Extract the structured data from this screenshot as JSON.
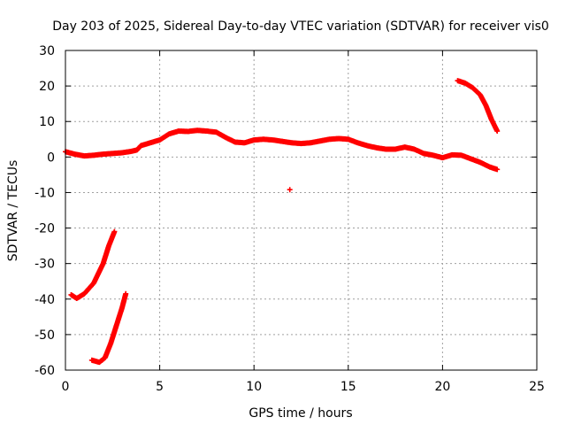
{
  "chart_data": {
    "type": "scatter",
    "title": "Day 203 of 2025, Sidereal Day-to-day VTEC variation (SDTVAR) for receiver vis0",
    "xlabel": "GPS time / hours",
    "ylabel": "SDTVAR / TECUs",
    "xlim": [
      0,
      25
    ],
    "ylim": [
      -60,
      30
    ],
    "xticks": [
      "0",
      "5",
      "10",
      "15",
      "20",
      "25"
    ],
    "yticks": [
      "-60",
      "-50",
      "-40",
      "-30",
      "-20",
      "-10",
      "0",
      "10",
      "20",
      "30"
    ],
    "grid": true,
    "marker": "plus",
    "series": [
      {
        "name": "main trace",
        "color": "#ff0000",
        "points": [
          [
            0,
            1.5
          ],
          [
            0.5,
            0.8
          ],
          [
            1.0,
            0.3
          ],
          [
            1.5,
            0.5
          ],
          [
            2.0,
            0.8
          ],
          [
            2.5,
            1.0
          ],
          [
            3.0,
            1.2
          ],
          [
            3.5,
            1.6
          ],
          [
            3.8,
            2.0
          ],
          [
            4.0,
            3.2
          ],
          [
            4.5,
            4.0
          ],
          [
            5.0,
            4.8
          ],
          [
            5.5,
            6.5
          ],
          [
            6.0,
            7.3
          ],
          [
            6.5,
            7.2
          ],
          [
            7.0,
            7.5
          ],
          [
            7.5,
            7.3
          ],
          [
            8.0,
            7.0
          ],
          [
            8.5,
            5.5
          ],
          [
            9.0,
            4.2
          ],
          [
            9.5,
            4.0
          ],
          [
            10.0,
            4.8
          ],
          [
            10.5,
            5.0
          ],
          [
            11.0,
            4.8
          ],
          [
            11.5,
            4.4
          ],
          [
            12.0,
            4.0
          ],
          [
            12.5,
            3.8
          ],
          [
            13.0,
            4.0
          ],
          [
            13.5,
            4.5
          ],
          [
            14.0,
            5.0
          ],
          [
            14.5,
            5.2
          ],
          [
            15.0,
            5.0
          ],
          [
            15.5,
            4.0
          ],
          [
            16.0,
            3.2
          ],
          [
            16.5,
            2.6
          ],
          [
            17.0,
            2.2
          ],
          [
            17.5,
            2.2
          ],
          [
            18.0,
            2.8
          ],
          [
            18.5,
            2.2
          ],
          [
            19.0,
            1.0
          ],
          [
            19.5,
            0.5
          ],
          [
            20.0,
            -0.2
          ],
          [
            20.5,
            0.6
          ],
          [
            21.0,
            0.5
          ],
          [
            21.5,
            -0.5
          ],
          [
            22.0,
            -1.5
          ],
          [
            22.5,
            -2.8
          ],
          [
            22.9,
            -3.5
          ]
        ]
      },
      {
        "name": "late rising segment",
        "color": "#ff0000",
        "points": [
          [
            20.8,
            21.5
          ],
          [
            21.2,
            20.8
          ],
          [
            21.6,
            19.5
          ],
          [
            22.0,
            17.5
          ],
          [
            22.3,
            14.5
          ],
          [
            22.6,
            10.5
          ],
          [
            22.9,
            7.3
          ]
        ]
      },
      {
        "name": "outlier",
        "color": "#ff0000",
        "points": [
          [
            11.9,
            -9.2
          ]
        ]
      },
      {
        "name": "early segment A",
        "color": "#ff0000",
        "points": [
          [
            0.3,
            -38.8
          ],
          [
            0.6,
            -39.8
          ],
          [
            1.0,
            -38.5
          ],
          [
            1.5,
            -35.5
          ],
          [
            2.0,
            -30.0
          ],
          [
            2.3,
            -25.0
          ],
          [
            2.6,
            -21.0
          ]
        ]
      },
      {
        "name": "early segment B",
        "color": "#ff0000",
        "points": [
          [
            1.4,
            -57.2
          ],
          [
            1.8,
            -57.8
          ],
          [
            2.1,
            -56.5
          ],
          [
            2.4,
            -52.5
          ],
          [
            2.7,
            -47.5
          ],
          [
            3.0,
            -42.5
          ],
          [
            3.2,
            -38.5
          ]
        ]
      }
    ]
  }
}
